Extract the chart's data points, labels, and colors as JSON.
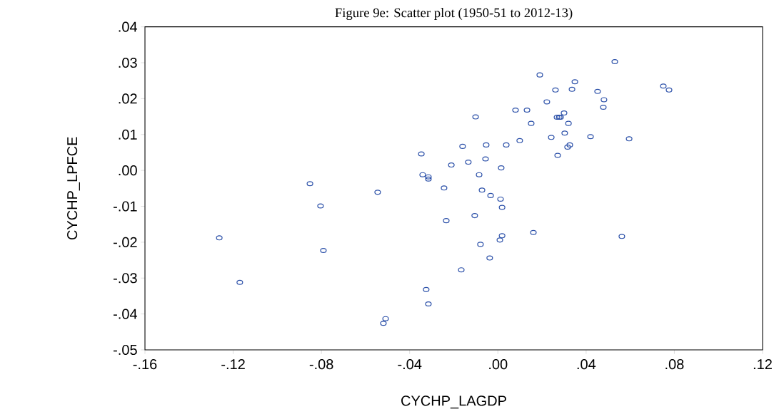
{
  "chart_data": {
    "type": "scatter",
    "title": "Figure 9e: Scatter plot (1950-51 to 2012-13)",
    "xlabel": "CYCHP_LAGDP",
    "ylabel": "CYCHP_LPFCE",
    "xlim": [
      -0.16,
      0.12
    ],
    "ylim": [
      -0.05,
      0.04
    ],
    "xticks": [
      {
        "value": -0.16,
        "label": "-.16"
      },
      {
        "value": -0.12,
        "label": "-.12"
      },
      {
        "value": -0.08,
        "label": "-.08"
      },
      {
        "value": -0.04,
        "label": "-.04"
      },
      {
        "value": 0,
        "label": ".00"
      },
      {
        "value": 0.04,
        "label": ".04"
      },
      {
        "value": 0.08,
        "label": ".08"
      },
      {
        "value": 0.12,
        "label": ".12"
      }
    ],
    "yticks": [
      {
        "value": -0.05,
        "label": "-.05"
      },
      {
        "value": -0.04,
        "label": "-.04"
      },
      {
        "value": -0.03,
        "label": "-.03"
      },
      {
        "value": -0.02,
        "label": "-.02"
      },
      {
        "value": -0.01,
        "label": "-.01"
      },
      {
        "value": 0,
        "label": ".00"
      },
      {
        "value": 0.01,
        "label": ".01"
      },
      {
        "value": 0.02,
        "label": ".02"
      },
      {
        "value": 0.03,
        "label": ".03"
      },
      {
        "value": 0.04,
        "label": ".04"
      }
    ],
    "grid": false,
    "marker": "circle",
    "series": [
      {
        "color": "#2a4fa8",
        "x": [
          -0.1263,
          -0.117,
          -0.0852,
          -0.0804,
          -0.0791,
          -0.0545,
          -0.0509,
          -0.0519,
          -0.0347,
          -0.0341,
          -0.0315,
          -0.0315,
          -0.0325,
          -0.0315,
          0.053,
          0.019,
          0.0349,
          0.0261,
          0.0336,
          0.075,
          0.0776,
          0.0452,
          0.0481,
          0.0478,
          0.0222,
          0.008,
          0.0132,
          -0.0101,
          0.03,
          0.0268,
          0.0278,
          0.0284,
          0.0151,
          0.032,
          0.0303,
          0.0242,
          0.042,
          0.0595,
          0.0099,
          0.0326,
          0.0316,
          0.0271,
          -0.016,
          -0.0053,
          0.0038,
          -0.0211,
          -0.0134,
          -0.0056,
          0.0015,
          -0.0085,
          -0.0244,
          -0.0072,
          -0.0033,
          0.0012,
          0.0019,
          -0.0105,
          -0.0234,
          0.0161,
          0.0562,
          0.0019,
          0.0009,
          -0.0079,
          -0.0037,
          -0.0166
        ],
        "values": [
          -0.0188,
          -0.0312,
          -0.0037,
          -0.0099,
          -0.0223,
          -0.0061,
          -0.0413,
          -0.0426,
          0.0046,
          -0.0012,
          -0.0018,
          -0.0024,
          -0.0332,
          -0.0372,
          0.0303,
          0.0266,
          0.0247,
          0.0224,
          0.0226,
          0.0235,
          0.0224,
          0.022,
          0.0197,
          0.0176,
          0.0191,
          0.0168,
          0.0168,
          0.0149,
          0.016,
          0.0148,
          0.0148,
          0.0148,
          0.0131,
          0.0131,
          0.0104,
          0.0092,
          0.0094,
          0.0088,
          0.0083,
          0.0071,
          0.0065,
          0.0042,
          0.0067,
          0.0071,
          0.0071,
          0.0015,
          0.0023,
          0.0032,
          0.0007,
          -0.0012,
          -0.0049,
          -0.0055,
          -0.007,
          -0.008,
          -0.0103,
          -0.0126,
          -0.014,
          -0.0173,
          -0.0184,
          -0.0182,
          -0.0194,
          -0.0206,
          -0.0244,
          -0.0277
        ]
      }
    ]
  }
}
